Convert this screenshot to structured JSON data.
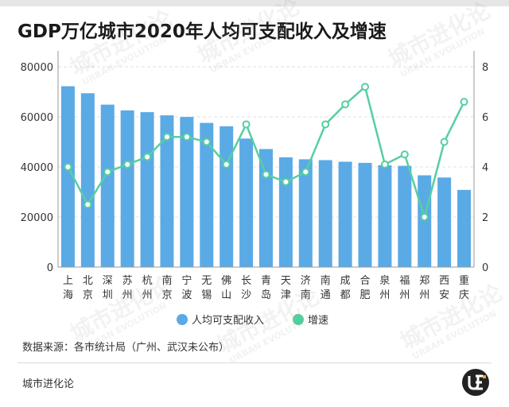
{
  "title": "GDP万亿城市2020年人均可支配收入及增速",
  "source": "数据来源：各市统计局（广州、武汉未公布）",
  "brand": "城市进化论",
  "watermark": {
    "cn": "城市进化论",
    "en": "URBAN EVOLUTION"
  },
  "colors": {
    "bar": "#5aaae6",
    "line": "#56cfa0",
    "axis": "#999999",
    "grid": "#e0e0e0",
    "text": "#333333"
  },
  "chart_data": {
    "type": "bar",
    "title": "GDP万亿城市2020年人均可支配收入及增速",
    "categories": [
      "上海",
      "北京",
      "深圳",
      "苏州",
      "杭州",
      "南京",
      "宁波",
      "无锡",
      "佛山",
      "长沙",
      "青岛",
      "天津",
      "济南",
      "南通",
      "成都",
      "合肥",
      "泉州",
      "福州",
      "郑州",
      "西安",
      "重庆"
    ],
    "category_labels": [
      [
        "上",
        "海"
      ],
      [
        "北",
        "京"
      ],
      [
        "深",
        "圳"
      ],
      [
        "苏",
        "州"
      ],
      [
        "杭",
        "州"
      ],
      [
        "南",
        "京"
      ],
      [
        "宁",
        "波"
      ],
      [
        "无",
        "锡"
      ],
      [
        "佛",
        "山"
      ],
      [
        "长",
        "沙"
      ],
      [
        "青",
        "岛"
      ],
      [
        "天",
        "津"
      ],
      [
        "济",
        "南"
      ],
      [
        "南",
        "通"
      ],
      [
        "成",
        "都"
      ],
      [
        "合",
        "肥"
      ],
      [
        "泉",
        "州"
      ],
      [
        "福",
        "州"
      ],
      [
        "郑",
        "州"
      ],
      [
        "西",
        "安"
      ],
      [
        "重",
        "庆"
      ]
    ],
    "series": [
      {
        "name": "人均可支配收入",
        "type": "bar",
        "axis": "left",
        "values": [
          72232,
          69434,
          64878,
          62582,
          61879,
          60606,
          59952,
          57589,
          56245,
          51335,
          47156,
          43854,
          43056,
          42707,
          42075,
          41619,
          40686,
          40444,
          36651,
          35783,
          30824
        ]
      },
      {
        "name": "增速",
        "type": "line",
        "axis": "right",
        "values": [
          4.0,
          2.5,
          3.8,
          4.1,
          4.4,
          5.2,
          5.2,
          5.0,
          4.1,
          5.7,
          3.7,
          3.4,
          3.8,
          5.7,
          6.5,
          7.2,
          4.1,
          4.5,
          2.0,
          5.0,
          6.6
        ]
      }
    ],
    "y_left": {
      "min": 0,
      "max": 80000,
      "ticks": [
        0,
        20000,
        40000,
        60000,
        80000
      ]
    },
    "y_right": {
      "min": 0,
      "max": 8,
      "ticks": [
        0,
        2,
        4,
        6,
        8
      ]
    },
    "grid": true,
    "legend": "bottom-center"
  }
}
